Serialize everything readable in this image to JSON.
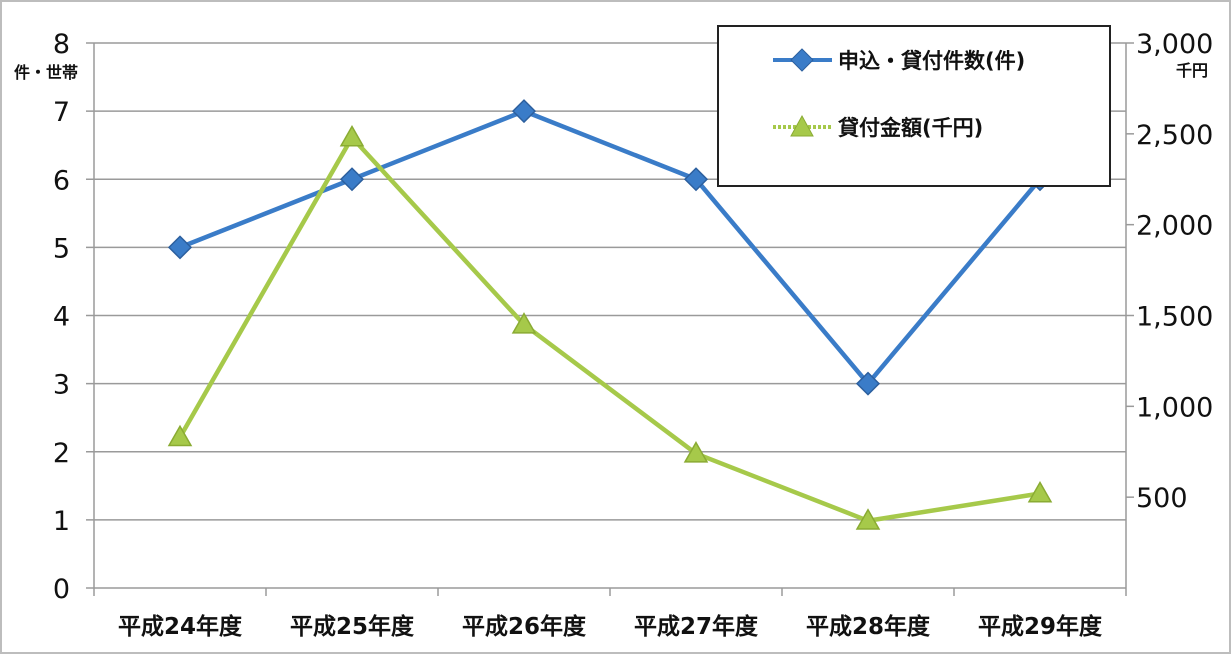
{
  "chart_data": {
    "type": "line",
    "categories": [
      "平成24年度",
      "平成25年度",
      "平成26年度",
      "平成27年度",
      "平成28年度",
      "平成29年度"
    ],
    "y_left": {
      "label": "件・世帯",
      "ylim": [
        0,
        8
      ],
      "ticks": [
        "0",
        "1",
        "2",
        "3",
        "4",
        "5",
        "6",
        "7",
        "8"
      ]
    },
    "y_right": {
      "label": "千円",
      "ylim": [
        0,
        3000
      ],
      "ticks": [
        "500",
        "1,000",
        "1,500",
        "2,000",
        "2,500",
        "3,000"
      ]
    },
    "series": [
      {
        "name": "申込・貸付件数(件)",
        "axis": "left",
        "marker": "diamond",
        "color": "#3a7cc8",
        "values": [
          5,
          6,
          7,
          6,
          3,
          6
        ]
      },
      {
        "name": "貸付金額(千円)",
        "axis": "right",
        "marker": "triangle",
        "color": "#a6c94a",
        "values": [
          830,
          2480,
          1450,
          740,
          370,
          520
        ]
      }
    ],
    "grid": true,
    "legend_position": "top-right"
  }
}
